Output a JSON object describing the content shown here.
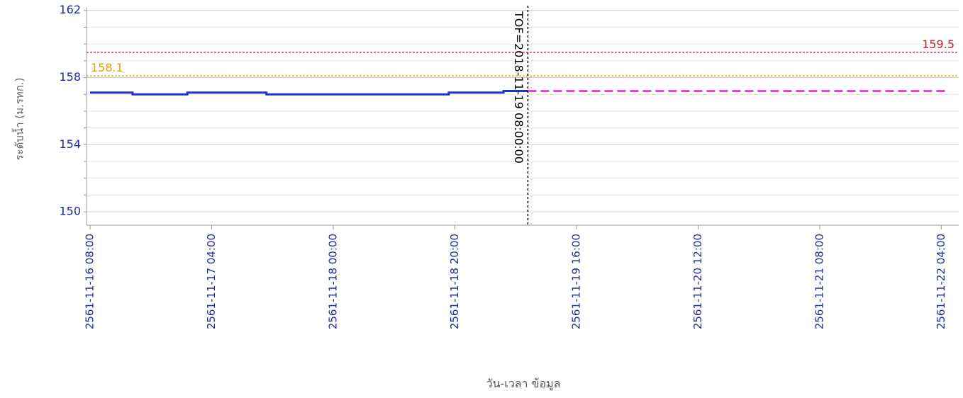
{
  "chart_data": {
    "type": "line",
    "ylabel": "ระดับน้ำ (ม.รทก.)",
    "xlabel": "วัน-เวลา ข้อมูล",
    "ylim": [
      149.2,
      162.2
    ],
    "xlim": [
      "2561-11-16 08:00",
      "2561-11-22 05:00"
    ],
    "y_ticks": [
      150,
      154,
      158,
      162
    ],
    "y_minor_step": 1,
    "x_ticks": [
      "2561-11-16 08:00",
      "2561-11-17 04:00",
      "2561-11-18 00:00",
      "2561-11-18 20:00",
      "2561-11-19 16:00",
      "2561-11-20 12:00",
      "2561-11-21 08:00",
      "2561-11-22 04:00"
    ],
    "grid": true,
    "colors": {
      "observed": "#1a33d6",
      "forecast": "#ee44cc",
      "threshold_high": "#c0222a",
      "threshold_low": "#e0a000",
      "tof": "#000000",
      "tick_text": "#1f2a9a",
      "axis_label": "#666666"
    },
    "series": [
      {
        "style": "solid",
        "x": [
          "2561-11-16 08:00",
          "2561-11-16 15:00",
          "2561-11-16 15:00",
          "2561-11-17 00:00",
          "2561-11-17 00:00",
          "2561-11-17 13:00",
          "2561-11-17 13:00",
          "2561-11-18 19:00",
          "2561-11-18 19:00",
          "2561-11-19 04:00",
          "2561-11-19 04:00",
          "2561-11-19 08:00"
        ],
        "values": [
          157.1,
          157.1,
          157.0,
          157.0,
          157.1,
          157.1,
          157.0,
          157.0,
          157.1,
          157.1,
          157.2,
          157.2
        ]
      },
      {
        "style": "dashed",
        "x": [
          "2561-11-19 08:00",
          "2561-11-22 05:00"
        ],
        "values": [
          157.2,
          157.2
        ]
      }
    ],
    "thresholds": [
      {
        "value": 159.5,
        "label": "159.5",
        "color": "#c0222a",
        "label_position": "right"
      },
      {
        "value": 158.1,
        "label": "158.1",
        "color": "#e0a000",
        "label_position": "left"
      }
    ],
    "marker": {
      "x": "2561-11-19 08:00",
      "label": "TOF=2018-11-19 08:00:00"
    }
  }
}
